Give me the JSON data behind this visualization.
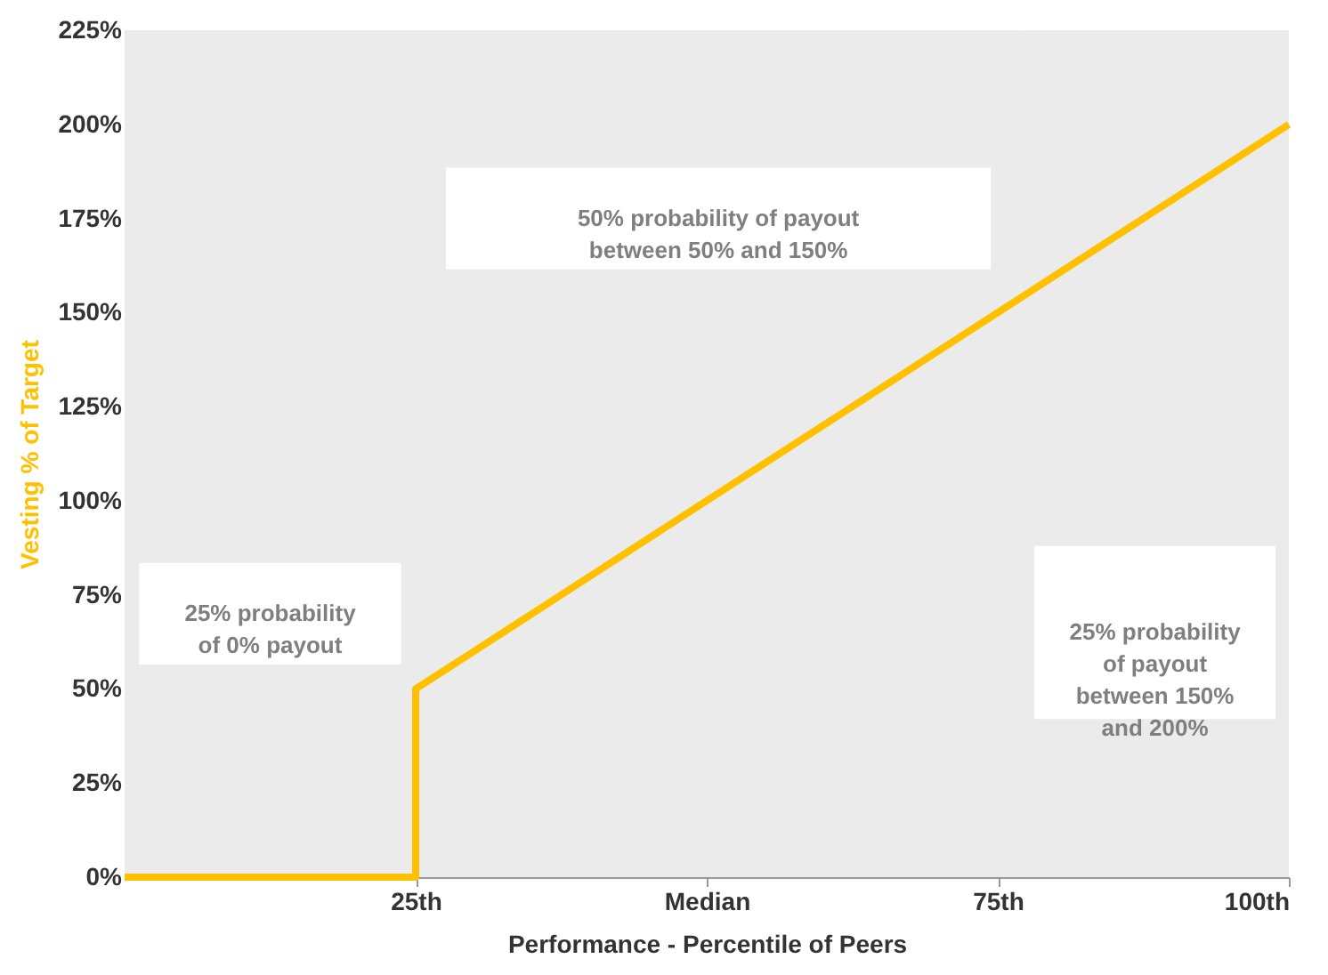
{
  "chart_data": {
    "type": "line",
    "xlabel": "Performance - Percentile of Peers",
    "ylabel": "Vesting % of Target",
    "x": [
      0,
      25,
      25,
      100
    ],
    "series": [
      {
        "color": "#ffc000",
        "values": [
          0,
          0,
          50,
          200
        ]
      }
    ],
    "xlim": [
      0,
      100
    ],
    "xticks": [
      {
        "value": 25,
        "label": "25th"
      },
      {
        "value": 50,
        "label": "Median"
      },
      {
        "value": 75,
        "label": "75th"
      },
      {
        "value": 100,
        "label": "100th"
      }
    ],
    "ylim": [
      0,
      225
    ],
    "yticks": [
      {
        "value": 0,
        "label": "0%"
      },
      {
        "value": 25,
        "label": "25%"
      },
      {
        "value": 50,
        "label": "50%"
      },
      {
        "value": 75,
        "label": "75%"
      },
      {
        "value": 100,
        "label": "100%"
      },
      {
        "value": 125,
        "label": "125%"
      },
      {
        "value": 150,
        "label": "150%"
      },
      {
        "value": 175,
        "label": "175%"
      },
      {
        "value": 200,
        "label": "200%"
      },
      {
        "value": 225,
        "label": "225%"
      }
    ],
    "bands": [
      {
        "axis": "x",
        "from": 0,
        "to": 25,
        "label": "25% probability of 0% payout",
        "color": "#ebebeb"
      },
      {
        "axis": "x",
        "from": 25,
        "to": 77,
        "label": "50% probability of payout between 50% and 150%",
        "color": "#ebebeb"
      },
      {
        "axis": "x",
        "from": 77,
        "to": 100,
        "label": "25% probability of payout between 150% and 200%",
        "color": "#ebebeb"
      }
    ],
    "grid": false,
    "marker": "none",
    "line_style": "solid"
  }
}
